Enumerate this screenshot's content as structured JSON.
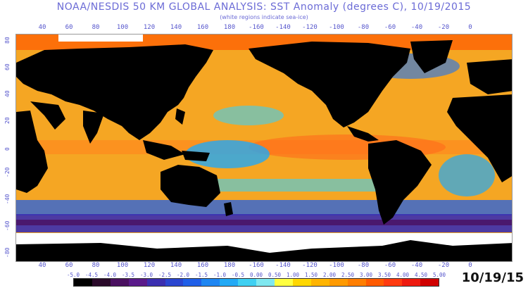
{
  "header": {
    "title": "NOAA/NESDIS 50 KM GLOBAL ANALYSIS: SST Anomaly (degrees C), 10/19/2015",
    "subtitle": "(white regions indicate sea-ice)"
  },
  "longitude_labels": [
    "40",
    "60",
    "80",
    "100",
    "120",
    "140",
    "160",
    "180",
    "-160",
    "-140",
    "-120",
    "-100",
    "-80",
    "-60",
    "-40",
    "-20",
    "0"
  ],
  "latitude_labels": [
    "80",
    "60",
    "40",
    "20",
    "0",
    "-20",
    "-40",
    "-60",
    "-80"
  ],
  "legend": {
    "labels": [
      "-5.0",
      "-4.5",
      "-4.0",
      "-3.5",
      "-3.0",
      "-2.5",
      "-2.0",
      "-1.5",
      "-1.0",
      "-0.5",
      "0.00",
      "0.50",
      "1.00",
      "1.50",
      "2.00",
      "2.50",
      "3.00",
      "3.50",
      "4.00",
      "4.50",
      "5.00"
    ],
    "colors": [
      "#000000",
      "#2a0a2a",
      "#4a1060",
      "#5a1a8a",
      "#3b2fb0",
      "#2a46d0",
      "#1f5fe8",
      "#1e86f2",
      "#22a9f5",
      "#3fd0f2",
      "#7fe8f0",
      "#ffff40",
      "#ffd700",
      "#ffb400",
      "#ff9a00",
      "#ff7e00",
      "#ff5a00",
      "#ff3a10",
      "#ee1a10",
      "#d00000"
    ]
  },
  "date_stamp": "10/19/15",
  "colors": {
    "land": "#000000",
    "sea_ice": "#ffffff",
    "warm_ocean": "#f5a623",
    "cool_ocean": "#22a9f5",
    "axis_text": "#5555cc"
  }
}
